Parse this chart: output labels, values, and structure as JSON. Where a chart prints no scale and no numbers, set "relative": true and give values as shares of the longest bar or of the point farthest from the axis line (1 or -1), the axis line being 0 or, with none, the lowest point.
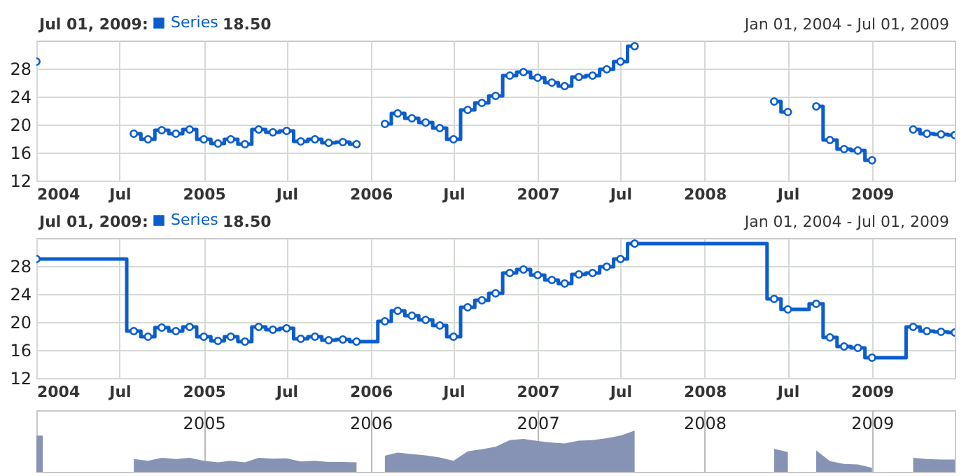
{
  "chart_data": [
    {
      "type": "step",
      "x": [
        "2004-01",
        "2004-02",
        "2004-03",
        "2004-04",
        "2004-05",
        "2004-06",
        "2004-07",
        "2004-08",
        "2004-09",
        "2004-10",
        "2004-11",
        "2004-12",
        "2005-01",
        "2005-02",
        "2005-03",
        "2005-04",
        "2005-05",
        "2005-06",
        "2005-07",
        "2005-08",
        "2005-09",
        "2005-10",
        "2005-11",
        "2005-12",
        "2006-01",
        "2006-02",
        "2006-03",
        "2006-04",
        "2006-05",
        "2006-06",
        "2006-07",
        "2006-08",
        "2006-09",
        "2006-10",
        "2006-11",
        "2006-12",
        "2007-01",
        "2007-02",
        "2007-03",
        "2007-04",
        "2007-05",
        "2007-06",
        "2007-07",
        "2007-08",
        "2007-09",
        "2007-10",
        "2007-11",
        "2007-12",
        "2008-01",
        "2008-02",
        "2008-03",
        "2008-04",
        "2008-05",
        "2008-06",
        "2008-07",
        "2008-08",
        "2008-09",
        "2008-10",
        "2008-11",
        "2008-12",
        "2009-01",
        "2009-02",
        "2009-03",
        "2009-04",
        "2009-05",
        "2009-06",
        "2009-07"
      ],
      "series": [
        {
          "name": "Series",
          "color": "#0b5dcc",
          "values": [
            29.0,
            null,
            null,
            null,
            null,
            null,
            null,
            18.7,
            17.9,
            19.2,
            18.7,
            19.3,
            17.9,
            17.3,
            17.9,
            17.2,
            19.3,
            18.9,
            19.1,
            17.6,
            17.9,
            17.4,
            17.5,
            17.2,
            null,
            20.1,
            21.6,
            20.9,
            20.3,
            19.5,
            17.9,
            22.1,
            23.1,
            24.1,
            27.0,
            27.5,
            26.7,
            26.0,
            25.5,
            26.8,
            27.0,
            27.9,
            29.0,
            31.2,
            null,
            null,
            null,
            null,
            null,
            null,
            null,
            null,
            null,
            23.3,
            21.8,
            null,
            22.6,
            17.8,
            16.5,
            16.3,
            14.9,
            null,
            null,
            19.3,
            18.7,
            18.6,
            18.5
          ]
        }
      ],
      "xlim": [
        "2004-01",
        "2009-07"
      ],
      "ylim": [
        12,
        32
      ],
      "yticks": [
        12,
        16,
        20,
        24,
        28
      ],
      "xticks": [
        {
          "value": "2004-01",
          "label": "2004"
        },
        {
          "value": "2004-07",
          "label": "Jul"
        },
        {
          "value": "2005-01",
          "label": "2005"
        },
        {
          "value": "2005-07",
          "label": "Jul"
        },
        {
          "value": "2006-01",
          "label": "2006"
        },
        {
          "value": "2006-07",
          "label": "Jul"
        },
        {
          "value": "2007-01",
          "label": "2007"
        },
        {
          "value": "2007-07",
          "label": "Jul"
        },
        {
          "value": "2008-01",
          "label": "2008"
        },
        {
          "value": "2008-07",
          "label": "Jul"
        },
        {
          "value": "2009-01",
          "label": "2009"
        }
      ],
      "grid": true,
      "legend": "top left",
      "marker": "circle",
      "annotations": [
        "Jul 01, 2009:",
        "18.50",
        "Jan 01, 2004 - Jul 01, 2009"
      ]
    },
    {
      "type": "step",
      "x": [
        "2004-01",
        "2004-02",
        "2004-03",
        "2004-04",
        "2004-05",
        "2004-06",
        "2004-07",
        "2004-08",
        "2004-09",
        "2004-10",
        "2004-11",
        "2004-12",
        "2005-01",
        "2005-02",
        "2005-03",
        "2005-04",
        "2005-05",
        "2005-06",
        "2005-07",
        "2005-08",
        "2005-09",
        "2005-10",
        "2005-11",
        "2005-12",
        "2006-01",
        "2006-02",
        "2006-03",
        "2006-04",
        "2006-05",
        "2006-06",
        "2006-07",
        "2006-08",
        "2006-09",
        "2006-10",
        "2006-11",
        "2006-12",
        "2007-01",
        "2007-02",
        "2007-03",
        "2007-04",
        "2007-05",
        "2007-06",
        "2007-07",
        "2007-08",
        "2007-09",
        "2007-10",
        "2007-11",
        "2007-12",
        "2008-01",
        "2008-02",
        "2008-03",
        "2008-04",
        "2008-05",
        "2008-06",
        "2008-07",
        "2008-08",
        "2008-09",
        "2008-10",
        "2008-11",
        "2008-12",
        "2009-01",
        "2009-02",
        "2009-03",
        "2009-04",
        "2009-05",
        "2009-06",
        "2009-07"
      ],
      "series": [
        {
          "name": "Series",
          "color": "#0b5dcc",
          "marker": "none",
          "values": [
            29.0,
            29.0,
            29.0,
            29.0,
            29.0,
            29.0,
            29.0,
            18.7,
            17.9,
            19.2,
            18.7,
            19.3,
            17.9,
            17.3,
            17.9,
            17.2,
            19.3,
            18.9,
            19.1,
            17.6,
            17.9,
            17.4,
            17.5,
            17.2,
            17.2,
            20.1,
            21.6,
            20.9,
            20.3,
            19.5,
            17.9,
            22.1,
            23.1,
            24.1,
            27.0,
            27.5,
            26.7,
            26.0,
            25.5,
            26.8,
            27.0,
            27.9,
            29.0,
            31.2,
            31.2,
            31.2,
            31.2,
            31.2,
            31.2,
            31.2,
            31.2,
            31.2,
            31.2,
            23.3,
            21.8,
            21.8,
            22.6,
            17.8,
            16.5,
            16.3,
            14.9,
            14.9,
            14.9,
            19.3,
            18.7,
            18.6,
            18.5
          ]
        },
        {
          "type": "scatter",
          "color": "#0b5dcc",
          "values": [
            29.0,
            null,
            null,
            null,
            null,
            null,
            null,
            18.7,
            17.9,
            19.2,
            18.7,
            19.3,
            17.9,
            17.3,
            17.9,
            17.2,
            19.3,
            18.9,
            19.1,
            17.6,
            17.9,
            17.4,
            17.5,
            17.2,
            null,
            20.1,
            21.6,
            20.9,
            20.3,
            19.5,
            17.9,
            22.1,
            23.1,
            24.1,
            27.0,
            27.5,
            26.7,
            26.0,
            25.5,
            26.8,
            27.0,
            27.9,
            29.0,
            31.2,
            null,
            null,
            null,
            null,
            null,
            null,
            null,
            null,
            null,
            23.3,
            21.8,
            null,
            22.6,
            17.8,
            16.5,
            16.3,
            14.9,
            null,
            null,
            19.3,
            18.7,
            18.6,
            18.5
          ]
        }
      ],
      "xlim": [
        "2004-01",
        "2009-07"
      ],
      "ylim": [
        12,
        32
      ],
      "yticks": [
        12,
        16,
        20,
        24,
        28
      ],
      "xticks": [
        {
          "value": "2004-01",
          "label": "2004"
        },
        {
          "value": "2004-07",
          "label": "Jul"
        },
        {
          "value": "2005-01",
          "label": "2005"
        },
        {
          "value": "2005-07",
          "label": "Jul"
        },
        {
          "value": "2006-01",
          "label": "2006"
        },
        {
          "value": "2006-07",
          "label": "Jul"
        },
        {
          "value": "2007-01",
          "label": "2007"
        },
        {
          "value": "2007-07",
          "label": "Jul"
        },
        {
          "value": "2008-01",
          "label": "2008"
        },
        {
          "value": "2008-07",
          "label": "Jul"
        },
        {
          "value": "2009-01",
          "label": "2009"
        }
      ],
      "grid": true,
      "legend": "top left",
      "marker": "circle",
      "annotations": [
        "Jul 01, 2009:",
        "18.50",
        "Jan 01, 2004 - Jul 01, 2009"
      ]
    },
    {
      "type": "area",
      "relative": true,
      "x": [
        "2004-01",
        "2004-01-15",
        "2004-02",
        "2004-03",
        "2004-04",
        "2004-05",
        "2004-06",
        "2004-07",
        "2004-08",
        "2004-09",
        "2004-10",
        "2004-11",
        "2004-12",
        "2005-01",
        "2005-02",
        "2005-03",
        "2005-04",
        "2005-05",
        "2005-06",
        "2005-07",
        "2005-08",
        "2005-09",
        "2005-10",
        "2005-11",
        "2005-12",
        "2006-01",
        "2006-02",
        "2006-03",
        "2006-04",
        "2006-05",
        "2006-06",
        "2006-07",
        "2006-08",
        "2006-09",
        "2006-10",
        "2006-11",
        "2006-12",
        "2007-01",
        "2007-02",
        "2007-03",
        "2007-04",
        "2007-05",
        "2007-06",
        "2007-07",
        "2007-08",
        "2007-09",
        "2007-10",
        "2007-11",
        "2007-12",
        "2008-01",
        "2008-02",
        "2008-03",
        "2008-04",
        "2008-05",
        "2008-06",
        "2008-07",
        "2008-08",
        "2008-09",
        "2008-10",
        "2008-11",
        "2008-12",
        "2009-01",
        "2009-02",
        "2009-03",
        "2009-04",
        "2009-05",
        "2009-06",
        "2009-07"
      ],
      "series": [
        {
          "color": "#8793b5",
          "values": [
            0.88,
            0.88,
            null,
            null,
            null,
            null,
            null,
            null,
            0.31,
            0.27,
            0.34,
            0.31,
            0.34,
            0.27,
            0.23,
            0.27,
            0.23,
            0.34,
            0.32,
            0.33,
            0.25,
            0.27,
            0.24,
            0.24,
            0.23,
            null,
            0.39,
            0.47,
            0.43,
            0.4,
            0.35,
            0.27,
            0.5,
            0.55,
            0.61,
            0.77,
            0.8,
            0.75,
            0.71,
            0.69,
            0.76,
            0.77,
            0.82,
            0.88,
            1,
            null,
            null,
            null,
            null,
            null,
            null,
            null,
            null,
            null,
            0.56,
            0.48,
            null,
            0.52,
            0.26,
            0.19,
            0.18,
            0.1,
            null,
            null,
            0.34,
            0.31,
            0.3,
            0.3
          ]
        }
      ],
      "xlim": [
        "2004-01",
        "2009-07"
      ],
      "xticks": [
        {
          "value": "2005-01",
          "label": "2005"
        },
        {
          "value": "2006-01",
          "label": "2006"
        },
        {
          "value": "2007-01",
          "label": "2007"
        },
        {
          "value": "2008-01",
          "label": "2008"
        },
        {
          "value": "2009-01",
          "label": "2009"
        }
      ],
      "grid": "x"
    }
  ]
}
